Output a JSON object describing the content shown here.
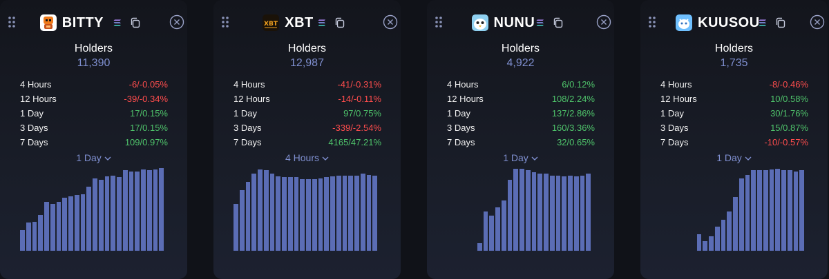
{
  "colors": {
    "accent": "#7f8fd0",
    "bar": "#5b6db5",
    "positive": "#4fc46b",
    "negative": "#ff4d4d"
  },
  "cards": [
    {
      "token": "BITTY",
      "logo_icon": "bitty-logo-icon",
      "holders_label": "Holders",
      "holders_value": "11,390",
      "stats": [
        {
          "period": "4 Hours",
          "change": "-6/-0.05%",
          "trend": "neg"
        },
        {
          "period": "12 Hours",
          "change": "-39/-0.34%",
          "trend": "neg"
        },
        {
          "period": "1 Day",
          "change": "17/0.15%",
          "trend": "pos"
        },
        {
          "period": "3 Days",
          "change": "17/0.15%",
          "trend": "pos"
        },
        {
          "period": "7 Days",
          "change": "109/0.97%",
          "trend": "pos"
        }
      ],
      "interval": "1 Day",
      "chart_values": [
        0.24,
        0.33,
        0.34,
        0.42,
        0.57,
        0.55,
        0.57,
        0.62,
        0.64,
        0.65,
        0.66,
        0.75,
        0.85,
        0.83,
        0.87,
        0.88,
        0.86,
        0.94,
        0.93,
        0.93,
        0.95,
        0.94,
        0.95,
        0.97
      ]
    },
    {
      "token": "XBT",
      "logo_icon": "xbt-logo-icon",
      "holders_label": "Holders",
      "holders_value": "12,987",
      "stats": [
        {
          "period": "4 Hours",
          "change": "-41/-0.31%",
          "trend": "neg"
        },
        {
          "period": "12 Hours",
          "change": "-14/-0.11%",
          "trend": "neg"
        },
        {
          "period": "1 Day",
          "change": "97/0.75%",
          "trend": "pos"
        },
        {
          "period": "3 Days",
          "change": "-339/-2.54%",
          "trend": "neg"
        },
        {
          "period": "7 Days",
          "change": "4165/47.21%",
          "trend": "pos"
        }
      ],
      "interval": "4 Hours",
      "chart_values": [
        0.55,
        0.71,
        0.81,
        0.9,
        0.95,
        0.94,
        0.9,
        0.87,
        0.86,
        0.86,
        0.86,
        0.84,
        0.84,
        0.84,
        0.85,
        0.86,
        0.87,
        0.88,
        0.88,
        0.88,
        0.88,
        0.9,
        0.89,
        0.88
      ]
    },
    {
      "token": "NUNU",
      "logo_icon": "nunu-logo-icon",
      "holders_label": "Holders",
      "holders_value": "4,922",
      "stats": [
        {
          "period": "4 Hours",
          "change": "6/0.12%",
          "trend": "pos"
        },
        {
          "period": "12 Hours",
          "change": "108/2.24%",
          "trend": "pos"
        },
        {
          "period": "1 Day",
          "change": "137/2.86%",
          "trend": "pos"
        },
        {
          "period": "3 Days",
          "change": "160/3.36%",
          "trend": "pos"
        },
        {
          "period": "7 Days",
          "change": "32/0.65%",
          "trend": "pos"
        }
      ],
      "interval": "1 Day",
      "chart_values": [
        0.09,
        0.46,
        0.41,
        0.51,
        0.59,
        0.83,
        0.96,
        0.96,
        0.94,
        0.92,
        0.9,
        0.9,
        0.88,
        0.88,
        0.87,
        0.88,
        0.87,
        0.88,
        0.9
      ]
    },
    {
      "token": "KUUSOU",
      "logo_icon": "kuusou-logo-icon",
      "holders_label": "Holders",
      "holders_value": "1,735",
      "stats": [
        {
          "period": "4 Hours",
          "change": "-8/-0.46%",
          "trend": "neg"
        },
        {
          "period": "12 Hours",
          "change": "10/0.58%",
          "trend": "pos"
        },
        {
          "period": "1 Day",
          "change": "30/1.76%",
          "trend": "pos"
        },
        {
          "period": "3 Days",
          "change": "15/0.87%",
          "trend": "pos"
        },
        {
          "period": "7 Days",
          "change": "-10/-0.57%",
          "trend": "neg"
        }
      ],
      "interval": "1 Day",
      "chart_values": [
        0.19,
        0.11,
        0.17,
        0.28,
        0.36,
        0.46,
        0.63,
        0.85,
        0.89,
        0.94,
        0.94,
        0.94,
        0.95,
        0.96,
        0.94,
        0.94,
        0.93,
        0.94
      ]
    }
  ]
}
